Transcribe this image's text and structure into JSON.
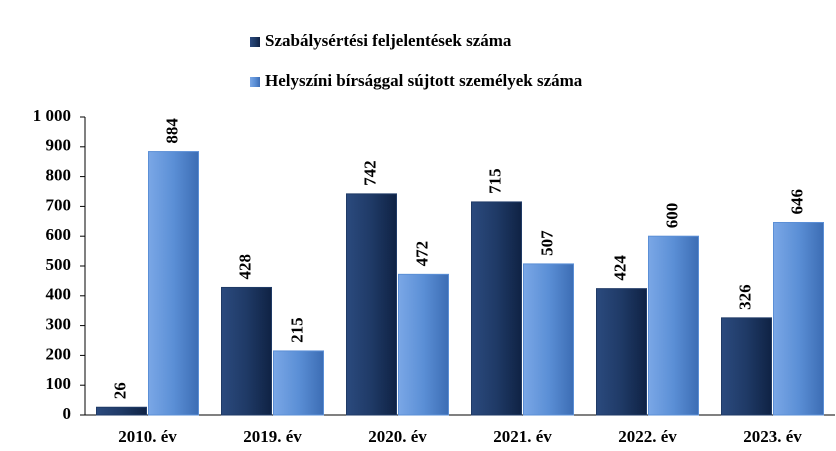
{
  "chart_data": {
    "type": "bar",
    "categories": [
      "2010. év",
      "2019. év",
      "2020. év",
      "2021. év",
      "2022. év",
      "2023. év"
    ],
    "series": [
      {
        "name": "Szabálysértési feljelentések száma",
        "color": "#1f3a66",
        "values": [
          26,
          428,
          742,
          715,
          424,
          326
        ]
      },
      {
        "name": "Helyszíni bírsággal sújtott személyek száma",
        "color": "#5b8fd6",
        "values": [
          884,
          215,
          472,
          507,
          600,
          646
        ]
      }
    ],
    "ylim": [
      0,
      1000
    ],
    "yticks": [
      0,
      100,
      200,
      300,
      400,
      500,
      600,
      700,
      800,
      900,
      {
        "value": 1000,
        "label": "1 000"
      }
    ],
    "grid": false
  }
}
